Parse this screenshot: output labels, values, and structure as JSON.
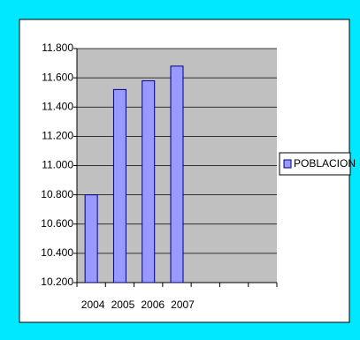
{
  "chart_data": {
    "type": "bar",
    "categories": [
      "2004",
      "2005",
      "2006",
      "2007",
      null,
      null,
      null
    ],
    "series": [
      {
        "name": "POBLACION",
        "color": "#9999ff",
        "values": [
          10800,
          11520,
          11580,
          11680,
          null,
          null,
          null
        ]
      }
    ],
    "ylim": [
      10200,
      11800
    ],
    "yticks": [
      {
        "value": 10200,
        "label": "10.200"
      },
      {
        "value": 10400,
        "label": "10.400"
      },
      {
        "value": 10600,
        "label": "10.600"
      },
      {
        "value": 10800,
        "label": "10.800"
      },
      {
        "value": 11000,
        "label": "11.000"
      },
      {
        "value": 11200,
        "label": "11.200"
      },
      {
        "value": 11400,
        "label": "11.400"
      },
      {
        "value": 11600,
        "label": "11.600"
      },
      {
        "value": 11800,
        "label": "11.800"
      }
    ],
    "grid": true,
    "legend": "right"
  }
}
